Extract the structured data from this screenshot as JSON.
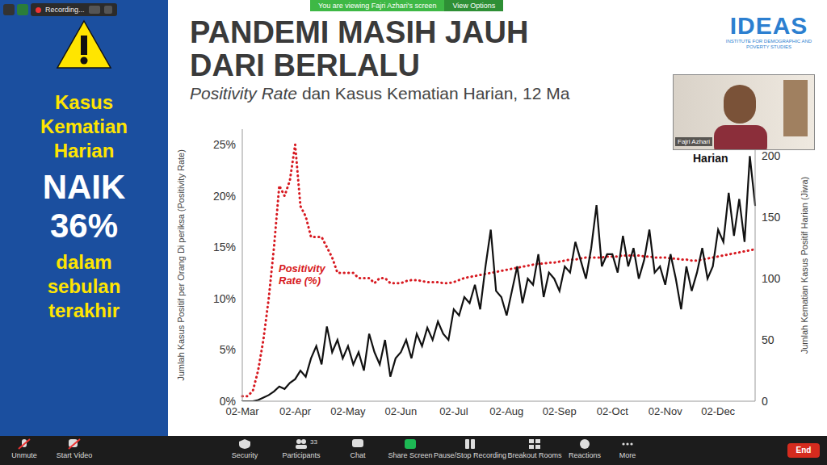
{
  "zoom": {
    "recording": "Recording...",
    "banner": "You are viewing Fajri Azhari's screen",
    "view_options": "View Options",
    "presenter": "Fajri Azhari",
    "toolbar_left": [
      "Unmute",
      "Start Video"
    ],
    "toolbar_center": [
      "Security",
      "Participants",
      "Chat",
      "Share Screen",
      "Pause/Stop Recording",
      "Breakout Rooms",
      "Reactions",
      "More"
    ],
    "participants_count": 33,
    "end": "End"
  },
  "sidebar": {
    "top": [
      "Kasus",
      "Kematian",
      "Harian"
    ],
    "big": [
      "NAIK",
      "36%"
    ],
    "bottom": [
      "dalam",
      "sebulan",
      "terakhir"
    ]
  },
  "slide": {
    "title": [
      "PANDEMI MASIH JAUH",
      "DARI BERLALU"
    ],
    "subtitle_italic": "Positivity Rate",
    "subtitle_rest": " dan Kasus Kematian Harian, 12 Ma",
    "logo": "IDEAS",
    "logo_sub": "INSTITUTE FOR DEMOGRAPHIC AND POVERTY STUDIES"
  },
  "chart_data": {
    "type": "line",
    "categories": [
      "02-Mar",
      null,
      null,
      null,
      null,
      null,
      null,
      null,
      null,
      null,
      "02-Apr",
      null,
      null,
      null,
      null,
      null,
      null,
      null,
      null,
      null,
      "02-May",
      null,
      null,
      null,
      null,
      null,
      null,
      null,
      null,
      null,
      "02-Jun",
      null,
      null,
      null,
      null,
      null,
      null,
      null,
      null,
      null,
      "02-Jul",
      null,
      null,
      null,
      null,
      null,
      null,
      null,
      null,
      null,
      "02-Aug",
      null,
      null,
      null,
      null,
      null,
      null,
      null,
      null,
      null,
      "02-Sep",
      null,
      null,
      null,
      null,
      null,
      null,
      null,
      null,
      null,
      "02-Oct",
      null,
      null,
      null,
      null,
      null,
      null,
      null,
      null,
      null,
      "02-Nov",
      null,
      null,
      null,
      null,
      null,
      null,
      null,
      null,
      null,
      "02-Dec",
      null,
      null,
      null,
      null,
      null,
      null,
      null
    ],
    "series": [
      {
        "name": "Positivity Rate (%)",
        "color": "#d71920",
        "line_style": "dotted",
        "axis": "y",
        "values": [
          0.5,
          0.5,
          1,
          3,
          6,
          10,
          15,
          21,
          20,
          21.5,
          25,
          19,
          18,
          16,
          16,
          16,
          15,
          14,
          12.5,
          12.5,
          12.5,
          12.5,
          12,
          12,
          12,
          11.5,
          12,
          12,
          11.5,
          11.5,
          11.5,
          11.7,
          11.8,
          11.8,
          11.7,
          11.6,
          11.6,
          11.6,
          11.5,
          11.5,
          11.6,
          11.8,
          12,
          12.1,
          12.2,
          12.3,
          12.4,
          12.5,
          12.6,
          12.7,
          12.8,
          12.9,
          13,
          13.1,
          13.2,
          13.3,
          13.4,
          13.4,
          13.5,
          13.5,
          13.6,
          13.7,
          13.8,
          13.8,
          13.9,
          14,
          14,
          14,
          14,
          14.1,
          14.1,
          14.1,
          14.2,
          14.2,
          14.2,
          14.2,
          14.1,
          14.1,
          14,
          14,
          14,
          13.9,
          13.9,
          13.8,
          13.8,
          13.7,
          13.7,
          13.8,
          13.9,
          14,
          14.1,
          14.2,
          14.3,
          14.4,
          14.5,
          14.6,
          14.7,
          14.8
        ]
      },
      {
        "name": "Harian",
        "color": "#111111",
        "line_style": "solid",
        "axis": "y2",
        "values": [
          0,
          0,
          0,
          1,
          3,
          5,
          8,
          12,
          10,
          15,
          18,
          25,
          20,
          35,
          45,
          30,
          61,
          40,
          50,
          35,
          45,
          30,
          40,
          25,
          55,
          40,
          30,
          50,
          20,
          35,
          40,
          50,
          35,
          55,
          45,
          60,
          50,
          65,
          55,
          50,
          75,
          70,
          85,
          80,
          95,
          75,
          110,
          140,
          90,
          85,
          70,
          90,
          110,
          80,
          100,
          95,
          120,
          85,
          105,
          100,
          90,
          110,
          105,
          130,
          115,
          100,
          125,
          160,
          110,
          120,
          120,
          105,
          135,
          110,
          125,
          100,
          115,
          140,
          105,
          110,
          95,
          120,
          100,
          75,
          110,
          90,
          105,
          125,
          100,
          110,
          140,
          130,
          170,
          135,
          165,
          130,
          200,
          160
        ]
      }
    ],
    "ylim": [
      0,
      26.5
    ],
    "yticks": [
      {
        "value": 0,
        "label": "0%"
      },
      {
        "value": 5,
        "label": "5%"
      },
      {
        "value": 10,
        "label": "10%"
      },
      {
        "value": 15,
        "label": "15%"
      },
      {
        "value": 20,
        "label": "20%"
      },
      {
        "value": 25,
        "label": "25%"
      }
    ],
    "y2lim": [
      0,
      222
    ],
    "y2ticks": [
      0,
      50,
      100,
      150,
      200
    ],
    "y_label": "Jumlah Kasus Positif per Orang Di periksa (Positivity Rate)",
    "y2_label": "Jumlah Kematian Kasus Positif Harian (Jiwa)",
    "grid": false
  }
}
